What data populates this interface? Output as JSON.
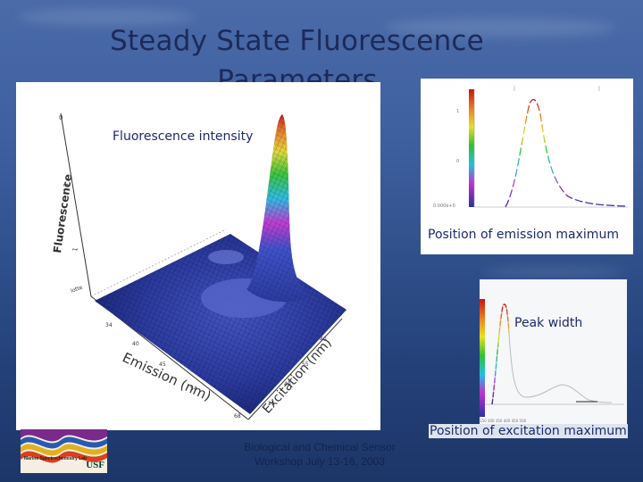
{
  "slide": {
    "title_line1": "Steady State Fluorescence",
    "title_line2": "Parameters",
    "footer_line1": "Biological and Chemical Sensor",
    "footer_line2": "Workshop July 13-16, 2003"
  },
  "annotations": {
    "fluorescence_intensity": "Fluorescence intensity",
    "emission_maximum": "Position of emission maximum",
    "peak_width": "Peak width",
    "excitation_maximum": "Position of excitation maximum"
  },
  "main_plot": {
    "z_axis_label": "Fluorescence",
    "x_axis_label": "Emission (nm)",
    "y_axis_label": "Excitation (nm)"
  },
  "logo": {
    "text": "Marine Spectrochemistry Lab",
    "mark": "USF"
  },
  "colors": {
    "title": "#1c2a5a",
    "label": "#1a2a6a",
    "surface_base": "#2b3a9c"
  }
}
